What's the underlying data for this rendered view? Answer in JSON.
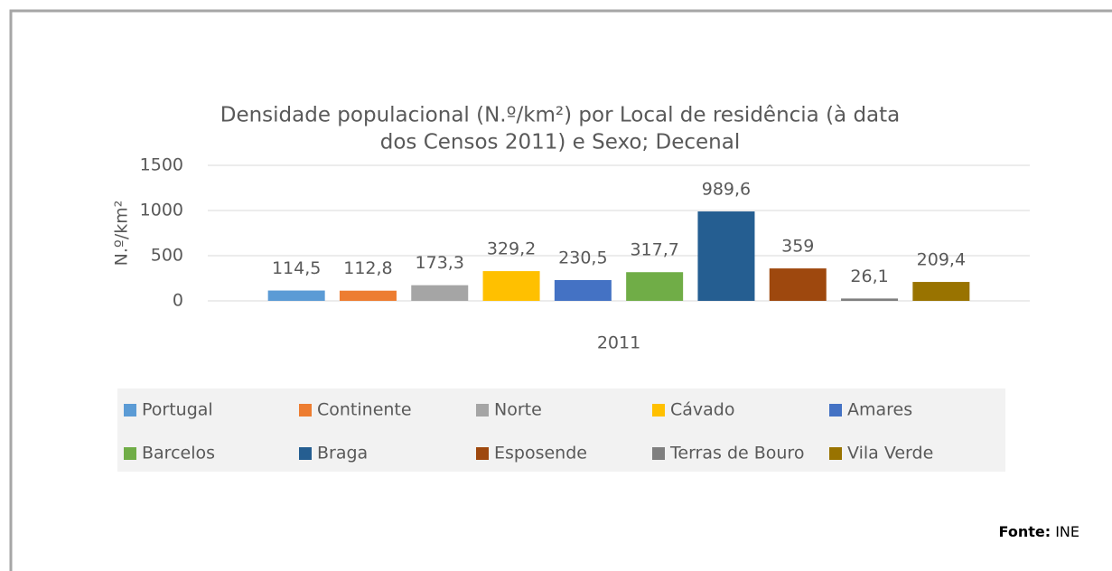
{
  "chart_data": {
    "type": "bar",
    "title": [
      "Densidade populacional (N.º/km²) por Local de residência (à data",
      "dos Censos 2011) e Sexo; Decenal"
    ],
    "y_label": "N.º/km²",
    "categories": [
      "2011"
    ],
    "ylim": [
      0,
      1500
    ],
    "yticks": [
      0,
      500,
      1000,
      1500
    ],
    "grid": true,
    "legend": "bottom",
    "series": [
      {
        "name": "Portugal",
        "color": "#5b9bd5",
        "values": [
          114.5
        ],
        "value_labels": [
          "114,5"
        ]
      },
      {
        "name": "Continente",
        "color": "#ed7d31",
        "values": [
          112.8
        ],
        "value_labels": [
          "112,8"
        ]
      },
      {
        "name": "Norte",
        "color": "#a5a5a5",
        "values": [
          173.3
        ],
        "value_labels": [
          "173,3"
        ]
      },
      {
        "name": "Cávado",
        "color": "#ffc000",
        "values": [
          329.2
        ],
        "value_labels": [
          "329,2"
        ]
      },
      {
        "name": "Amares",
        "color": "#4472c4",
        "values": [
          230.5
        ],
        "value_labels": [
          "230,5"
        ]
      },
      {
        "name": "Barcelos",
        "color": "#70ad47",
        "values": [
          317.7
        ],
        "value_labels": [
          "317,7"
        ]
      },
      {
        "name": "Braga",
        "color": "#255e91",
        "values": [
          989.6
        ],
        "value_labels": [
          "989,6"
        ]
      },
      {
        "name": "Esposende",
        "color": "#9e480e",
        "values": [
          359
        ],
        "value_labels": [
          "359"
        ]
      },
      {
        "name": "Terras de Bouro",
        "color": "#7f7f7f",
        "values": [
          26.1
        ],
        "value_labels": [
          "26,1"
        ]
      },
      {
        "name": "Vila Verde",
        "color": "#997300",
        "values": [
          209.4
        ],
        "value_labels": [
          "209,4"
        ]
      }
    ],
    "source_label": "Fonte:",
    "source": "INE"
  }
}
